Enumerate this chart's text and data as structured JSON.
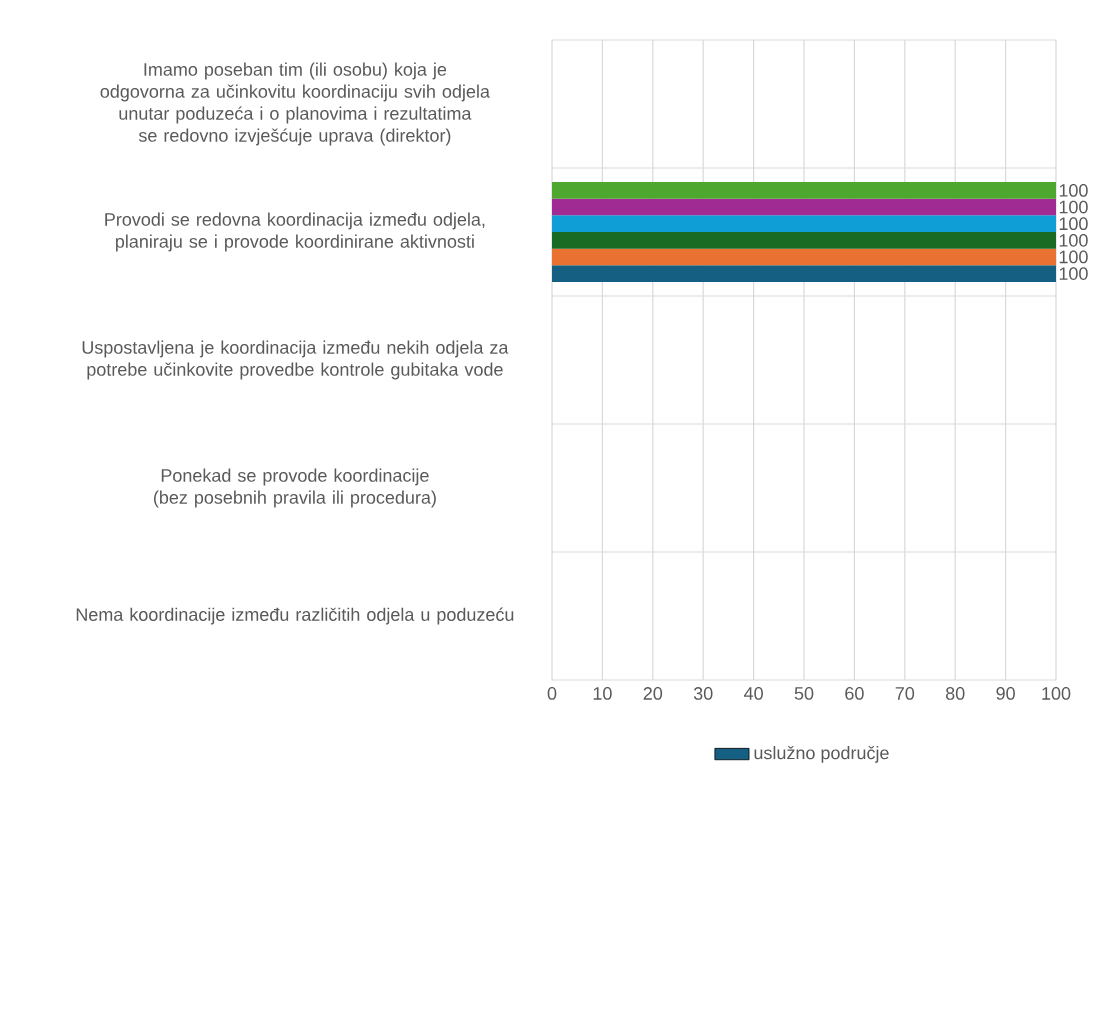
{
  "chart_data": {
    "type": "bar",
    "orientation": "horizontal",
    "categories": [
      "Imamo poseban tim (ili osobu) koja je odgovorna za učinkovitu koordinaciju svih odjela unutar poduzeća i o planovima i rezultatima se redovno izvješćuje uprava (direktor)",
      "Provodi se redovna koordinacija između odjela, planiraju se i provode koordinirane aktivnosti",
      "Uspostavljena je koordinacija između nekih odjela za potrebe učinkovite provedbe kontrole gubitaka vode",
      "Ponekad se provode koordinacije (bez posebnih pravila ili procedura)",
      "Nema koordinacije između različitih odjela u poduzeću"
    ],
    "xlim": [
      0,
      100
    ],
    "xticks": [
      0,
      10,
      20,
      30,
      40,
      50,
      60,
      70,
      80,
      90,
      100
    ],
    "grid": true,
    "legend": "bottom",
    "series": [
      {
        "name": "uslužno područje",
        "color": "#156082",
        "values": [
          null,
          100,
          null,
          null,
          null
        ],
        "value_labels": [
          null,
          "100",
          null,
          null,
          null
        ]
      },
      {
        "color": "#e97132",
        "values": [
          null,
          100,
          null,
          null,
          null
        ],
        "value_labels": [
          null,
          "100",
          null,
          null,
          null
        ]
      },
      {
        "color": "#196b24",
        "values": [
          null,
          100,
          null,
          null,
          null
        ],
        "value_labels": [
          null,
          "100",
          null,
          null,
          null
        ]
      },
      {
        "color": "#0f9ed5",
        "values": [
          null,
          100,
          null,
          null,
          null
        ],
        "value_labels": [
          null,
          "100",
          null,
          null,
          null
        ]
      },
      {
        "color": "#a02b93",
        "values": [
          null,
          100,
          null,
          null,
          null
        ],
        "value_labels": [
          null,
          "100",
          null,
          null,
          null
        ]
      },
      {
        "color": "#4ea72e",
        "values": [
          null,
          100,
          null,
          null,
          null
        ],
        "value_labels": [
          null,
          "100",
          null,
          null,
          null
        ]
      }
    ]
  }
}
